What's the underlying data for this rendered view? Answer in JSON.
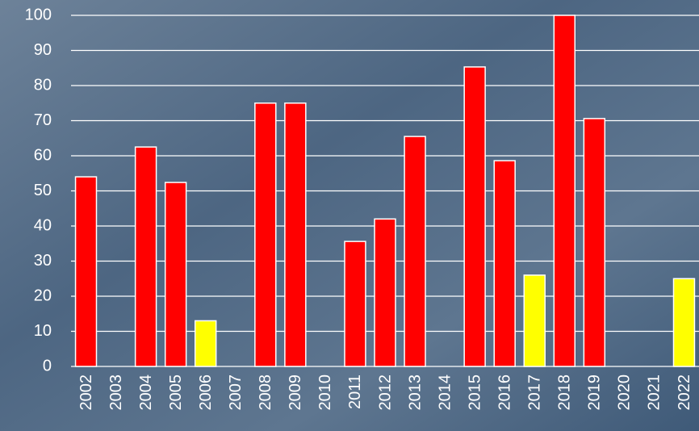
{
  "chart_data": {
    "type": "bar",
    "categories": [
      "2002",
      "2003",
      "2004",
      "2005",
      "2006",
      "2007",
      "2008",
      "2009",
      "2010",
      "2011",
      "2012",
      "2013",
      "2014",
      "2015",
      "2016",
      "2017",
      "2018",
      "2019",
      "2020",
      "2021",
      "2022"
    ],
    "values": [
      54,
      null,
      62.5,
      52.4,
      13,
      null,
      75,
      75,
      null,
      35.6,
      42,
      65.5,
      null,
      85.3,
      58.6,
      26,
      100,
      70.6,
      null,
      null,
      25
    ],
    "colors": [
      "#ff0000",
      null,
      "#ff0000",
      "#ff0000",
      "#ffff00",
      null,
      "#ff0000",
      "#ff0000",
      null,
      "#ff0000",
      "#ff0000",
      "#ff0000",
      null,
      "#ff0000",
      "#ff0000",
      "#ffff00",
      "#ff0000",
      "#ff0000",
      null,
      null,
      "#ffff00"
    ],
    "ylim": [
      0,
      100
    ],
    "yticks": [
      0,
      10,
      20,
      30,
      40,
      50,
      60,
      70,
      80,
      90,
      100
    ],
    "grid": true
  }
}
